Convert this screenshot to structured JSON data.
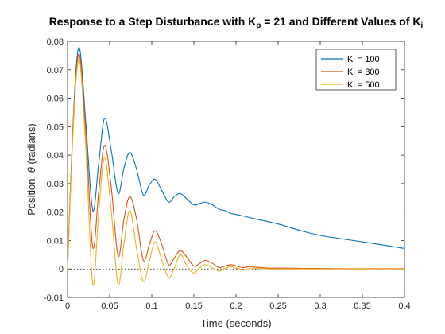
{
  "chart_data": {
    "type": "line",
    "title": "Response to a Step Disturbance with Kp = 21 and Different Values of Ki",
    "title_parts": {
      "prefix": "Response to a Step Disturbance with K",
      "sub_p": "p",
      "middle": " = 21 and Different Values of K",
      "sub_i": "i"
    },
    "xlabel": "Time (seconds)",
    "ylabel": "Position, θ (radians)",
    "ylabel_parts": {
      "prefix": "Position, ",
      "symbol": "θ",
      "suffix": " (radians)"
    },
    "xlim": [
      0,
      0.4
    ],
    "ylim": [
      -0.01,
      0.08
    ],
    "x_ticks": [
      0,
      0.05,
      0.1,
      0.15,
      0.2,
      0.25,
      0.3,
      0.35,
      0.4
    ],
    "x_tick_labels": [
      "0",
      "0.05",
      "0.1",
      "0.15",
      "0.2",
      "0.25",
      "0.3",
      "0.35",
      "0.4"
    ],
    "y_ticks": [
      -0.01,
      0,
      0.01,
      0.02,
      0.03,
      0.04,
      0.05,
      0.06,
      0.07,
      0.08
    ],
    "y_tick_labels": [
      "-0.01",
      "0",
      "0.01",
      "0.02",
      "0.03",
      "0.04",
      "0.05",
      "0.06",
      "0.07",
      "0.08"
    ],
    "grid": false,
    "legend_position": "top-right",
    "reference_line": {
      "y": 0,
      "style": "dotted",
      "color": "#000000"
    },
    "series": [
      {
        "name": "Ki = 100",
        "color": "#0072BD",
        "x": [
          0,
          0.005,
          0.01,
          0.015,
          0.0225,
          0.03,
          0.037,
          0.044,
          0.052,
          0.06,
          0.067,
          0.074,
          0.082,
          0.09,
          0.097,
          0.104,
          0.112,
          0.12,
          0.127,
          0.134,
          0.142,
          0.15,
          0.157,
          0.164,
          0.172,
          0.18,
          0.187,
          0.194,
          0.2,
          0.22,
          0.25,
          0.28,
          0.3,
          0.33,
          0.36,
          0.4
        ],
        "y": [
          0,
          0.04,
          0.07,
          0.0765,
          0.048,
          0.0205,
          0.037,
          0.053,
          0.0415,
          0.0265,
          0.0355,
          0.041,
          0.035,
          0.026,
          0.0295,
          0.0315,
          0.0275,
          0.0235,
          0.0255,
          0.0265,
          0.0245,
          0.0225,
          0.023,
          0.0235,
          0.0225,
          0.021,
          0.0205,
          0.0195,
          0.0192,
          0.0178,
          0.0158,
          0.0132,
          0.0118,
          0.0104,
          0.0091,
          0.0072
        ]
      },
      {
        "name": "Ki = 300",
        "color": "#D95319",
        "x": [
          0,
          0.005,
          0.01,
          0.015,
          0.0225,
          0.03,
          0.037,
          0.044,
          0.052,
          0.06,
          0.067,
          0.074,
          0.082,
          0.09,
          0.097,
          0.104,
          0.112,
          0.12,
          0.127,
          0.134,
          0.142,
          0.15,
          0.157,
          0.164,
          0.172,
          0.18,
          0.187,
          0.194,
          0.201,
          0.208,
          0.216,
          0.224,
          0.24,
          0.26,
          0.28,
          0.3,
          0.33,
          0.36,
          0.4
        ],
        "y": [
          0,
          0.04,
          0.068,
          0.074,
          0.044,
          0.0075,
          0.027,
          0.0435,
          0.0285,
          0.0045,
          0.0175,
          0.0255,
          0.0175,
          0.003,
          0.0085,
          0.0135,
          0.0085,
          0.0015,
          0.004,
          0.0065,
          0.004,
          0.001,
          0.002,
          0.003,
          0.002,
          0.0005,
          0.001,
          0.0015,
          0.001,
          0.0005,
          0.0008,
          0.0006,
          0.0003,
          0.0003,
          0.0002,
          0.0002,
          0.0001,
          0.0001,
          0.0001
        ]
      },
      {
        "name": "Ki = 500",
        "color": "#EDB120",
        "x": [
          0,
          0.005,
          0.01,
          0.015,
          0.0225,
          0.03,
          0.037,
          0.044,
          0.052,
          0.06,
          0.067,
          0.074,
          0.082,
          0.09,
          0.097,
          0.104,
          0.112,
          0.12,
          0.127,
          0.134,
          0.142,
          0.15,
          0.157,
          0.164,
          0.172,
          0.18,
          0.187,
          0.194,
          0.201,
          0.208,
          0.216,
          0.224,
          0.24,
          0.26,
          0.28,
          0.3,
          0.33,
          0.36,
          0.4
        ],
        "y": [
          0,
          0.038,
          0.066,
          0.072,
          0.038,
          -0.0055,
          0.02,
          0.039,
          0.02,
          -0.0055,
          0.009,
          0.0205,
          0.007,
          -0.0045,
          0.0025,
          0.0095,
          0.003,
          -0.003,
          0.0005,
          0.005,
          0.001,
          -0.0015,
          0.0005,
          0.0015,
          0.0003,
          -0.0008,
          0.0002,
          0.0008,
          0.0002,
          -0.0003,
          0.0001,
          0.0002,
          0.0,
          0.0,
          0.0,
          0.0,
          0.0,
          0.0,
          0.0
        ]
      }
    ]
  }
}
